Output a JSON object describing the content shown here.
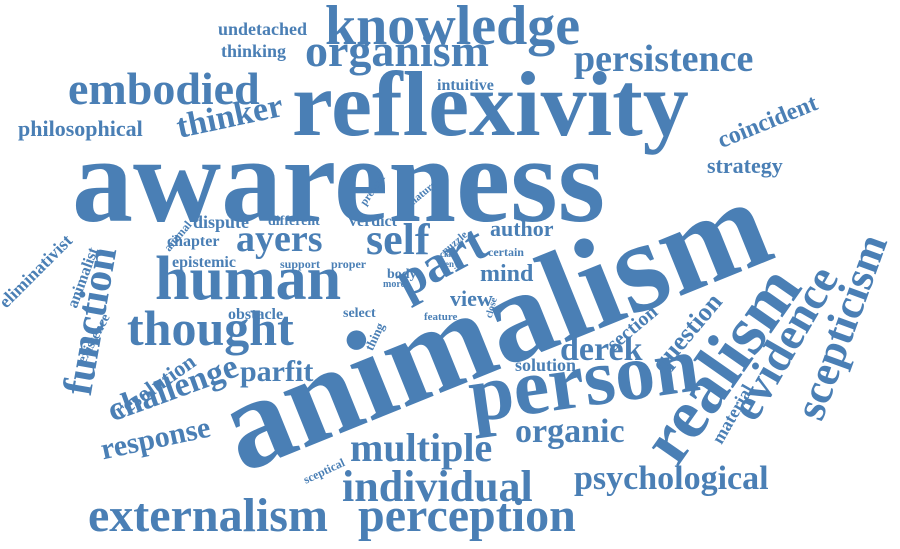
{
  "color": "#4a7fb5",
  "words": [
    {
      "text": "awareness"
    },
    {
      "text": "animalism"
    },
    {
      "text": "reflexivity"
    },
    {
      "text": "knowledge"
    },
    {
      "text": "organism"
    },
    {
      "text": "embodied"
    },
    {
      "text": "persistence"
    },
    {
      "text": "person"
    },
    {
      "text": "human"
    },
    {
      "text": "thought"
    },
    {
      "text": "externalism"
    },
    {
      "text": "perception"
    },
    {
      "text": "individual"
    },
    {
      "text": "multiple"
    },
    {
      "text": "psychological"
    },
    {
      "text": "realism"
    },
    {
      "text": "evidence"
    },
    {
      "text": "scepticism"
    },
    {
      "text": "function"
    },
    {
      "text": "self"
    },
    {
      "text": "part"
    },
    {
      "text": "ayers"
    },
    {
      "text": "thinker"
    },
    {
      "text": "challenge"
    },
    {
      "text": "response"
    },
    {
      "text": "parfit"
    },
    {
      "text": "organic"
    },
    {
      "text": "derek"
    },
    {
      "text": "question"
    },
    {
      "text": "strategy"
    },
    {
      "text": "coincident"
    },
    {
      "text": "philosophical"
    },
    {
      "text": "undetached"
    },
    {
      "text": "thinking"
    },
    {
      "text": "intuitive"
    },
    {
      "text": "resolution"
    },
    {
      "text": "section"
    },
    {
      "text": "material"
    },
    {
      "text": "mind"
    },
    {
      "text": "view"
    },
    {
      "text": "author"
    },
    {
      "text": "epistemic"
    },
    {
      "text": "chapter"
    },
    {
      "text": "dispute"
    },
    {
      "text": "different"
    },
    {
      "text": "verdict"
    },
    {
      "text": "obstacle"
    },
    {
      "text": "select"
    },
    {
      "text": "solution"
    },
    {
      "text": "eliminativist"
    },
    {
      "text": "animalist"
    },
    {
      "text": "existence"
    },
    {
      "text": "animal"
    },
    {
      "text": "support"
    },
    {
      "text": "proper"
    },
    {
      "text": "present"
    },
    {
      "text": "nature"
    },
    {
      "text": "puzzle"
    },
    {
      "text": "certain"
    },
    {
      "text": "body"
    },
    {
      "text": "more"
    },
    {
      "text": "class"
    },
    {
      "text": "deny"
    },
    {
      "text": "close"
    },
    {
      "text": "feature"
    },
    {
      "text": "thing"
    },
    {
      "text": "sceptical"
    }
  ]
}
